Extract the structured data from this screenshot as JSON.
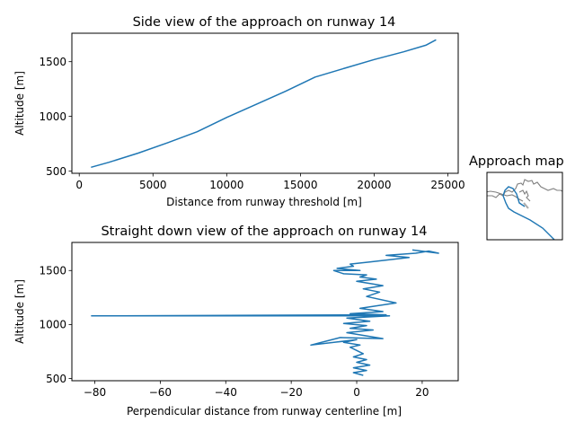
{
  "chart_data": [
    {
      "type": "line",
      "title": "Side view of the approach on runway 14",
      "xlabel": "Distance from runway threshold [m]",
      "ylabel": "Altitude [m]",
      "xlim": [
        -500,
        25700
      ],
      "ylim": [
        480,
        1760
      ],
      "xticks": [
        0,
        5000,
        10000,
        15000,
        20000,
        25000
      ],
      "yticks": [
        500,
        1000,
        1500
      ],
      "grid": false,
      "series": [
        {
          "x": [
            800,
            2000,
            4000,
            6000,
            8000,
            10000,
            12000,
            14000,
            16000,
            18000,
            20000,
            22000,
            23500,
            24200
          ],
          "y": [
            535,
            580,
            665,
            760,
            860,
            990,
            1110,
            1230,
            1360,
            1440,
            1520,
            1590,
            1650,
            1700
          ]
        }
      ]
    },
    {
      "type": "line",
      "title": "Straight down view of the approach on runway 14",
      "xlabel": "Perpendicular distance from runway centerline [m]",
      "ylabel": "Altitude [m]",
      "xlim": [
        -87,
        31
      ],
      "ylim": [
        480,
        1760
      ],
      "xticks": [
        -80,
        -60,
        -40,
        -20,
        0,
        20
      ],
      "yticks": [
        500,
        1000,
        1500
      ],
      "grid": false,
      "series": [
        {
          "x": [
            2,
            -1,
            3,
            -1,
            4,
            0,
            3,
            -1,
            2,
            0,
            -2,
            1,
            -4,
            0,
            -14,
            -5,
            8,
            -3,
            5,
            -2,
            3,
            -4,
            4,
            -3,
            10,
            -81,
            9,
            -2,
            8,
            1,
            12,
            3,
            7,
            2,
            8,
            0,
            6,
            1,
            3,
            -4,
            -7,
            1,
            -6,
            -1,
            -2,
            4,
            10,
            16,
            9,
            18,
            22,
            25,
            17
          ],
          "y": [
            530,
            555,
            575,
            600,
            625,
            650,
            675,
            700,
            730,
            760,
            790,
            810,
            835,
            860,
            810,
            880,
            870,
            925,
            950,
            965,
            990,
            1010,
            1030,
            1060,
            1080,
            1080,
            1090,
            1100,
            1120,
            1150,
            1200,
            1260,
            1300,
            1330,
            1360,
            1400,
            1420,
            1440,
            1460,
            1470,
            1500,
            1500,
            1520,
            1540,
            1560,
            1580,
            1600,
            1620,
            1640,
            1660,
            1680,
            1660,
            1690
          ]
        }
      ]
    }
  ],
  "map": {
    "title": "Approach map"
  }
}
